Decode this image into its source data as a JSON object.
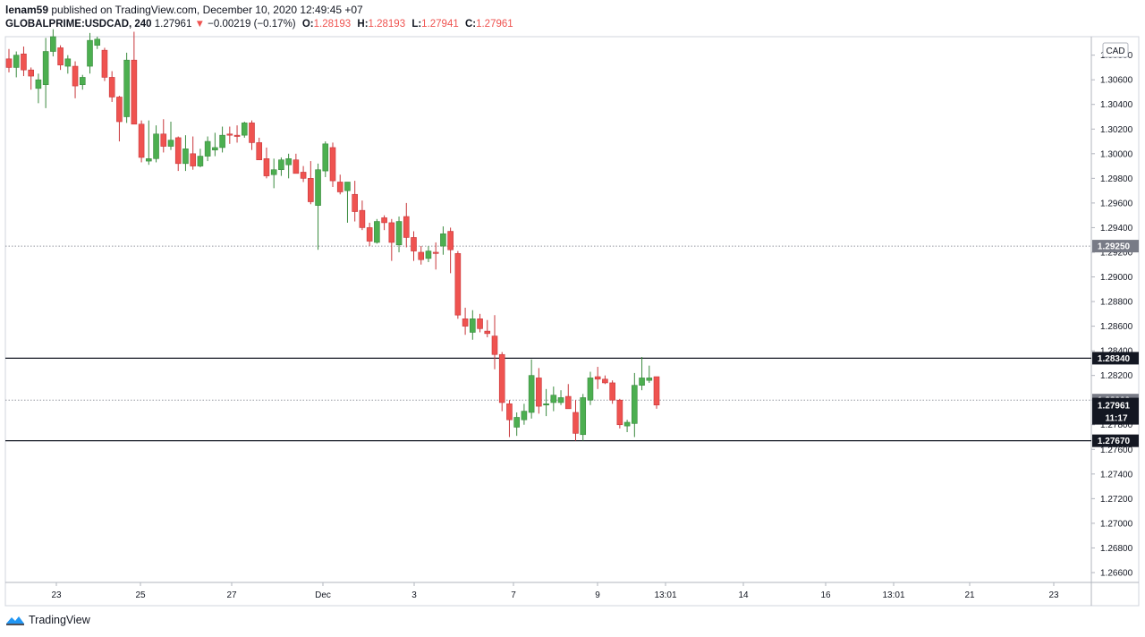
{
  "header": {
    "author": "lenam59",
    "published_text": "published on TradingView.com, December 10, 2020 12:49:45 +07",
    "symbol": "GLOBALPRIME:USDCAD, 240",
    "price": "1.27961",
    "change_arrow": "▼",
    "change": "−0.00219 (−0.17%)",
    "o_label": "O:",
    "o_value": "1.28193",
    "h_label": "H:",
    "h_value": "1.28193",
    "l_label": "L:",
    "l_value": "1.27941",
    "c_label": "C:",
    "c_value": "1.27961"
  },
  "footer": {
    "brand": "TradingView",
    "brand_icon": "tradingview-logo-icon"
  },
  "colors": {
    "up": "#4caf50",
    "down": "#ef5350",
    "grid_dotted": "#9598a1",
    "line": "#131722",
    "label_dark": "#131722",
    "label_grey": "#787b86"
  },
  "chart_data": {
    "type": "candlestick",
    "currency_badge": "CAD",
    "ylim": [
      1.2652,
      1.3095
    ],
    "y_ticks": [
      "1.26600",
      "1.26800",
      "1.27000",
      "1.27200",
      "1.27400",
      "1.27600",
      "1.27800",
      "1.28000",
      "1.28200",
      "1.28400",
      "1.28600",
      "1.28800",
      "1.29000",
      "1.29200",
      "1.29400",
      "1.29600",
      "1.29800",
      "1.30000",
      "1.30200",
      "1.30400",
      "1.30600",
      "1.30800"
    ],
    "x_ticks": [
      "23",
      "25",
      "27",
      "Dec",
      "3",
      "7",
      "9",
      "13:01",
      "14",
      "16",
      "13:01",
      "21",
      "23"
    ],
    "horizontal_lines": [
      {
        "value": 1.2834,
        "label": "1.28340",
        "style": "solid"
      },
      {
        "value": 1.2767,
        "label": "1.27670",
        "style": "solid"
      }
    ],
    "dotted_levels": [
      {
        "value": 1.2925,
        "label": "1.29250"
      },
      {
        "value": 1.28,
        "label": "1.28000"
      }
    ],
    "last_price": {
      "value": 1.27961,
      "label": "1.27961",
      "countdown": "11:17"
    },
    "candles": [
      [
        1.3077,
        1.3085,
        1.3066,
        1.307
      ],
      [
        1.307,
        1.3083,
        1.3062,
        1.308
      ],
      [
        1.3081,
        1.3087,
        1.3063,
        1.3068
      ],
      [
        1.3068,
        1.307,
        1.3052,
        1.3063
      ],
      [
        1.3053,
        1.3065,
        1.3041,
        1.306
      ],
      [
        1.3056,
        1.3094,
        1.3037,
        1.3083
      ],
      [
        1.3083,
        1.3101,
        1.3079,
        1.3095
      ],
      [
        1.3086,
        1.3088,
        1.3068,
        1.3072
      ],
      [
        1.3071,
        1.308,
        1.3065,
        1.3077
      ],
      [
        1.3071,
        1.3075,
        1.3045,
        1.3055
      ],
      [
        1.3056,
        1.3064,
        1.3052,
        1.3062
      ],
      [
        1.3071,
        1.3098,
        1.3065,
        1.3092
      ],
      [
        1.3088,
        1.3095,
        1.3085,
        1.3093
      ],
      [
        1.3084,
        1.3086,
        1.3059,
        1.3062
      ],
      [
        1.3062,
        1.3067,
        1.3042,
        1.3046
      ],
      [
        1.3046,
        1.3047,
        1.301,
        1.3026
      ],
      [
        1.303,
        1.3082,
        1.3025,
        1.3076
      ],
      [
        1.3076,
        1.3099,
        1.3026,
        1.3024
      ],
      [
        1.3024,
        1.3027,
        1.2993,
        1.2997
      ],
      [
        1.2994,
        1.3027,
        1.2991,
        1.2996
      ],
      [
        1.2996,
        1.3023,
        1.2993,
        1.3016
      ],
      [
        1.3016,
        1.3028,
        1.3001,
        1.3006
      ],
      [
        1.3006,
        1.3026,
        1.3003,
        1.3011
      ],
      [
        1.3013,
        1.3014,
        1.2986,
        1.2992
      ],
      [
        1.2992,
        1.3015,
        1.2986,
        1.3004
      ],
      [
        1.3,
        1.3014,
        1.2987,
        1.299
      ],
      [
        1.299,
        1.3004,
        1.2989,
        1.2998
      ],
      [
        1.2998,
        1.3014,
        1.2994,
        1.301
      ],
      [
        1.3003,
        1.3017,
        1.2998,
        1.3005
      ],
      [
        1.3005,
        1.3022,
        1.3001,
        1.3015
      ],
      [
        1.3016,
        1.3022,
        1.3008,
        1.3015
      ],
      [
        1.3015,
        1.3023,
        1.3009,
        1.3014
      ],
      [
        1.3015,
        1.3026,
        1.3013,
        1.3025
      ],
      [
        1.3025,
        1.3027,
        1.3003,
        1.3009
      ],
      [
        1.3009,
        1.3013,
        1.2995,
        1.2995
      ],
      [
        1.2996,
        1.3005,
        1.298,
        1.2982
      ],
      [
        1.2983,
        1.2996,
        1.2972,
        1.2987
      ],
      [
        1.2987,
        1.2997,
        1.2982,
        1.2995
      ],
      [
        1.2991,
        1.3,
        1.298,
        1.2996
      ],
      [
        1.2995,
        1.3,
        1.2987,
        1.2984
      ],
      [
        1.2985,
        1.299,
        1.2977,
        1.298
      ],
      [
        1.298,
        1.2994,
        1.2959,
        1.2961
      ],
      [
        1.2958,
        1.2992,
        1.2922,
        1.2987
      ],
      [
        1.2986,
        1.301,
        1.2981,
        1.3008
      ],
      [
        1.3005,
        1.3009,
        1.2973,
        1.2978
      ],
      [
        1.2977,
        1.2983,
        1.2967,
        1.2969
      ],
      [
        1.297,
        1.2977,
        1.2944,
        1.2977
      ],
      [
        1.2967,
        1.2978,
        1.2945,
        1.2953
      ],
      [
        1.2954,
        1.2962,
        1.2938,
        1.294
      ],
      [
        1.294,
        1.2944,
        1.2925,
        1.2929
      ],
      [
        1.2928,
        1.2947,
        1.2927,
        1.2945
      ],
      [
        1.2948,
        1.295,
        1.2938,
        1.2944
      ],
      [
        1.2944,
        1.2947,
        1.2913,
        1.2928
      ],
      [
        1.2926,
        1.2949,
        1.292,
        1.2945
      ],
      [
        1.2949,
        1.296,
        1.2924,
        1.2932
      ],
      [
        1.2932,
        1.2937,
        1.2913,
        1.2921
      ],
      [
        1.292,
        1.2925,
        1.291,
        1.2914
      ],
      [
        1.2915,
        1.2925,
        1.2912,
        1.2921
      ],
      [
        1.292,
        1.2928,
        1.2906,
        1.2919
      ],
      [
        1.2925,
        1.2941,
        1.2918,
        1.2935
      ],
      [
        1.2937,
        1.294,
        1.2903,
        1.2922
      ],
      [
        1.2919,
        1.2921,
        1.2866,
        1.2869
      ],
      [
        1.2866,
        1.2875,
        1.2853,
        1.286
      ],
      [
        1.2855,
        1.2873,
        1.2849,
        1.2866
      ],
      [
        1.2866,
        1.287,
        1.2855,
        1.2858
      ],
      [
        1.2856,
        1.2865,
        1.2851,
        1.2854
      ],
      [
        1.2852,
        1.2869,
        1.2825,
        1.2837
      ],
      [
        1.2837,
        1.2839,
        1.2791,
        1.2798
      ],
      [
        1.2797,
        1.28,
        1.277,
        1.2784
      ],
      [
        1.2778,
        1.279,
        1.2771,
        1.2786
      ],
      [
        1.2784,
        1.2797,
        1.278,
        1.2791
      ],
      [
        1.279,
        1.2833,
        1.2785,
        1.282
      ],
      [
        1.2818,
        1.2826,
        1.2789,
        1.2795
      ],
      [
        1.2796,
        1.2809,
        1.2787,
        1.2797
      ],
      [
        1.2798,
        1.2811,
        1.2791,
        1.2804
      ],
      [
        1.2798,
        1.2808,
        1.2796,
        1.2802
      ],
      [
        1.2803,
        1.2813,
        1.2795,
        1.2793
      ],
      [
        1.279,
        1.28,
        1.2767,
        1.2773
      ],
      [
        1.2772,
        1.2805,
        1.2767,
        1.2802
      ],
      [
        1.28,
        1.2823,
        1.2796,
        1.2818
      ],
      [
        1.2819,
        1.2827,
        1.2809,
        1.2817
      ],
      [
        1.2817,
        1.282,
        1.2813,
        1.2814
      ],
      [
        1.2814,
        1.2816,
        1.2797,
        1.28
      ],
      [
        1.28,
        1.2801,
        1.2777,
        1.278
      ],
      [
        1.2779,
        1.2784,
        1.2774,
        1.2782
      ],
      [
        1.2781,
        1.2822,
        1.277,
        1.2812
      ],
      [
        1.2812,
        1.2835,
        1.2808,
        1.2818
      ],
      [
        1.2816,
        1.2828,
        1.2814,
        1.2818
      ],
      [
        1.2819,
        1.2819,
        1.2793,
        1.2796
      ]
    ]
  }
}
